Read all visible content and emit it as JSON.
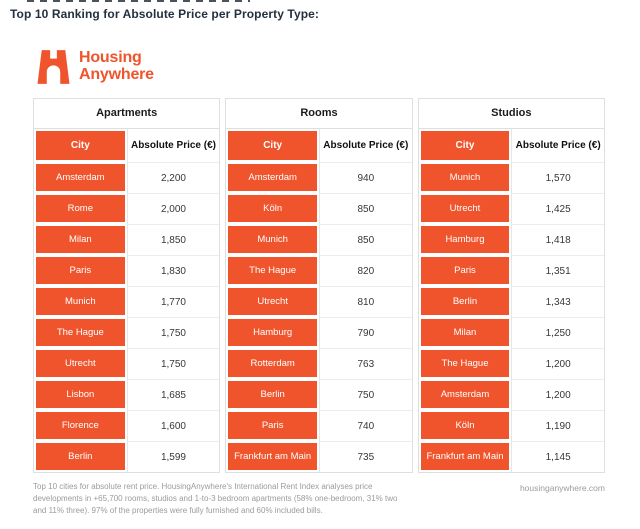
{
  "page": {
    "title": "Top 10 Ranking for Absolute Price per Property Type:",
    "logo": {
      "line1": "Housing",
      "line2": "Anywhere"
    },
    "footnote_lines": [
      "Top 10 cities for absolute rent price. HousingAnywhere's International Rent Index analyses price",
      "developments in +65,700 rooms, studios and 1-to-3 bedroom apartments (58% one-bedroom, 31% two",
      "and 11% three). 97% of the properties were fully furnished and 60% included bills."
    ],
    "website": "housinganywhere.com"
  },
  "colors": {
    "accent": "#f0542d",
    "title_ink": "#24303e",
    "border": "#dfdfdf",
    "muted_text": "#9b9b9b"
  },
  "chart_data": {
    "type": "table",
    "title": "Top 10 Ranking for Absolute Price per Property Type:",
    "currency": "EUR",
    "sections": [
      {
        "label": "Apartments",
        "columns": [
          "City",
          "Absolute Price (€)"
        ],
        "rows": [
          [
            "Amsterdam",
            "2,200"
          ],
          [
            "Rome",
            "2,000"
          ],
          [
            "Milan",
            "1,850"
          ],
          [
            "Paris",
            "1,830"
          ],
          [
            "Munich",
            "1,770"
          ],
          [
            "The Hague",
            "1,750"
          ],
          [
            "Utrecht",
            "1,750"
          ],
          [
            "Lisbon",
            "1,685"
          ],
          [
            "Florence",
            "1,600"
          ],
          [
            "Berlin",
            "1,599"
          ]
        ]
      },
      {
        "label": "Rooms",
        "columns": [
          "City",
          "Absolute Price (€)"
        ],
        "rows": [
          [
            "Amsterdam",
            "940"
          ],
          [
            "Köln",
            "850"
          ],
          [
            "Munich",
            "850"
          ],
          [
            "The Hague",
            "820"
          ],
          [
            "Utrecht",
            "810"
          ],
          [
            "Hamburg",
            "790"
          ],
          [
            "Rotterdam",
            "763"
          ],
          [
            "Berlin",
            "750"
          ],
          [
            "Paris",
            "740"
          ],
          [
            "Frankfurt am Main",
            "735"
          ]
        ]
      },
      {
        "label": "Studios",
        "columns": [
          "City",
          "Absolute Price (€)"
        ],
        "rows": [
          [
            "Munich",
            "1,570"
          ],
          [
            "Utrecht",
            "1,425"
          ],
          [
            "Hamburg",
            "1,418"
          ],
          [
            "Paris",
            "1,351"
          ],
          [
            "Berlin",
            "1,343"
          ],
          [
            "Milan",
            "1,250"
          ],
          [
            "The Hague",
            "1,200"
          ],
          [
            "Amsterdam",
            "1,200"
          ],
          [
            "Köln",
            "1,190"
          ],
          [
            "Frankfurt am Main",
            "1,145"
          ]
        ]
      }
    ]
  }
}
